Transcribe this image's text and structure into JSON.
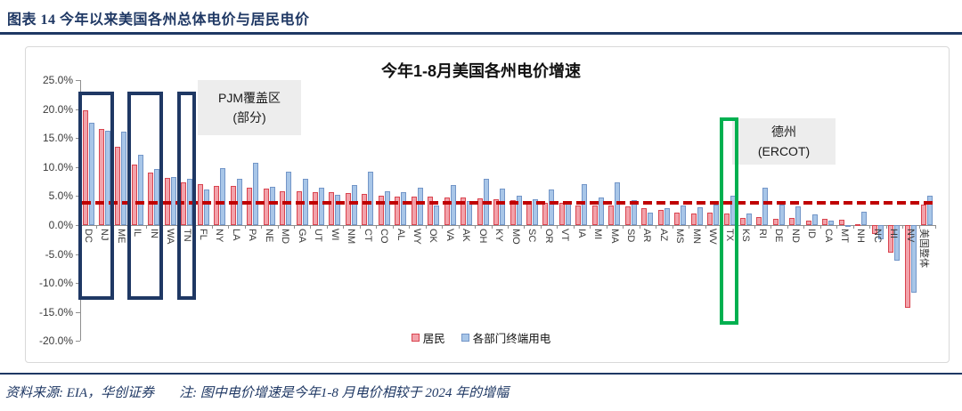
{
  "header": {
    "title": "图表 14  今年以来美国各州总体电价与居民电价"
  },
  "footer": {
    "source": "资料来源: EIA，华创证券",
    "note": "注: 图中电价增速是今年1-8 月电价相较于 2024 年的增幅"
  },
  "chart_data": {
    "type": "bar",
    "title": "今年1-8月美国各州电价增速",
    "xlabel": "",
    "ylabel": "",
    "ylim": [
      -20,
      25
    ],
    "y_ticks": [
      "25.0%",
      "20.0%",
      "15.0%",
      "10.0%",
      "5.0%",
      "0.0%",
      "-5.0%",
      "-10.0%",
      "-15.0%",
      "-20.0%"
    ],
    "y_tick_values": [
      25,
      20,
      15,
      10,
      5,
      0,
      -5,
      -10,
      -15,
      -20
    ],
    "grid": false,
    "legend_position": "bottom",
    "reference_line": {
      "value_pct": 3.8,
      "color": "#C00000",
      "style": "dashed"
    },
    "categories": [
      "DC",
      "NJ",
      "ME",
      "IL",
      "IN",
      "WA",
      "TN",
      "FL",
      "NY",
      "LA",
      "PA",
      "NE",
      "MD",
      "GA",
      "UT",
      "WI",
      "NM",
      "CT",
      "CO",
      "AL",
      "WY",
      "OK",
      "VA",
      "AK",
      "OH",
      "KY",
      "MO",
      "SC",
      "OR",
      "VT",
      "IA",
      "MI",
      "MA",
      "SD",
      "AR",
      "AZ",
      "MS",
      "MN",
      "WV",
      "TX",
      "KS",
      "RI",
      "DE",
      "ND",
      "ID",
      "CA",
      "MT",
      "NH",
      "NC",
      "HI",
      "NV",
      "美国整体"
    ],
    "series": [
      {
        "name": "居民",
        "fill": "#F2A2AA",
        "border": "#D9444F",
        "values": [
          19.8,
          16.5,
          13.5,
          10.4,
          9.0,
          8.1,
          7.4,
          7.0,
          6.8,
          6.7,
          6.4,
          6.3,
          5.9,
          5.8,
          5.7,
          5.6,
          5.5,
          5.3,
          5.1,
          4.9,
          4.9,
          4.9,
          4.7,
          4.8,
          4.6,
          4.4,
          4.3,
          4.1,
          3.8,
          3.8,
          3.4,
          3.4,
          3.4,
          3.2,
          2.9,
          2.6,
          2.2,
          2.0,
          2.2,
          2.0,
          1.3,
          1.4,
          1.1,
          1.2,
          0.8,
          1.0,
          0.9,
          0.1,
          -1.6,
          -4.8,
          -14.2,
          3.6
        ]
      },
      {
        "name": "各部门终端用电",
        "fill": "#A8C6E8",
        "border": "#7396C8",
        "values": [
          17.7,
          16.3,
          16.1,
          12.1,
          9.7,
          8.3,
          8.0,
          6.2,
          9.8,
          8.0,
          10.8,
          6.6,
          9.2,
          8.0,
          6.4,
          5.2,
          6.9,
          9.2,
          5.8,
          5.6,
          6.5,
          3.4,
          6.9,
          4.1,
          8.0,
          6.3,
          5.1,
          4.5,
          6.2,
          4.2,
          7.1,
          4.7,
          7.3,
          4.3,
          2.1,
          2.9,
          3.4,
          3.1,
          3.5,
          5.0,
          2.0,
          6.5,
          3.5,
          3.2,
          1.9,
          0.7,
          -0.2,
          2.3,
          -2.4,
          -6.1,
          -11.6,
          5.0
        ]
      }
    ],
    "annotations": [
      {
        "lines": [
          "PJM覆盖区",
          "(部分)"
        ]
      },
      {
        "lines": [
          "德州",
          "(ERCOT)"
        ]
      }
    ],
    "highlight_boxes": [
      {
        "states": [
          "DC",
          "NJ"
        ],
        "color": "#1F3864"
      },
      {
        "states": [
          "IL",
          "IN"
        ],
        "color": "#1F3864"
      },
      {
        "states": [
          "TN"
        ],
        "color": "#1F3864"
      },
      {
        "states": [
          "TX"
        ],
        "color": "#00B050"
      }
    ]
  }
}
